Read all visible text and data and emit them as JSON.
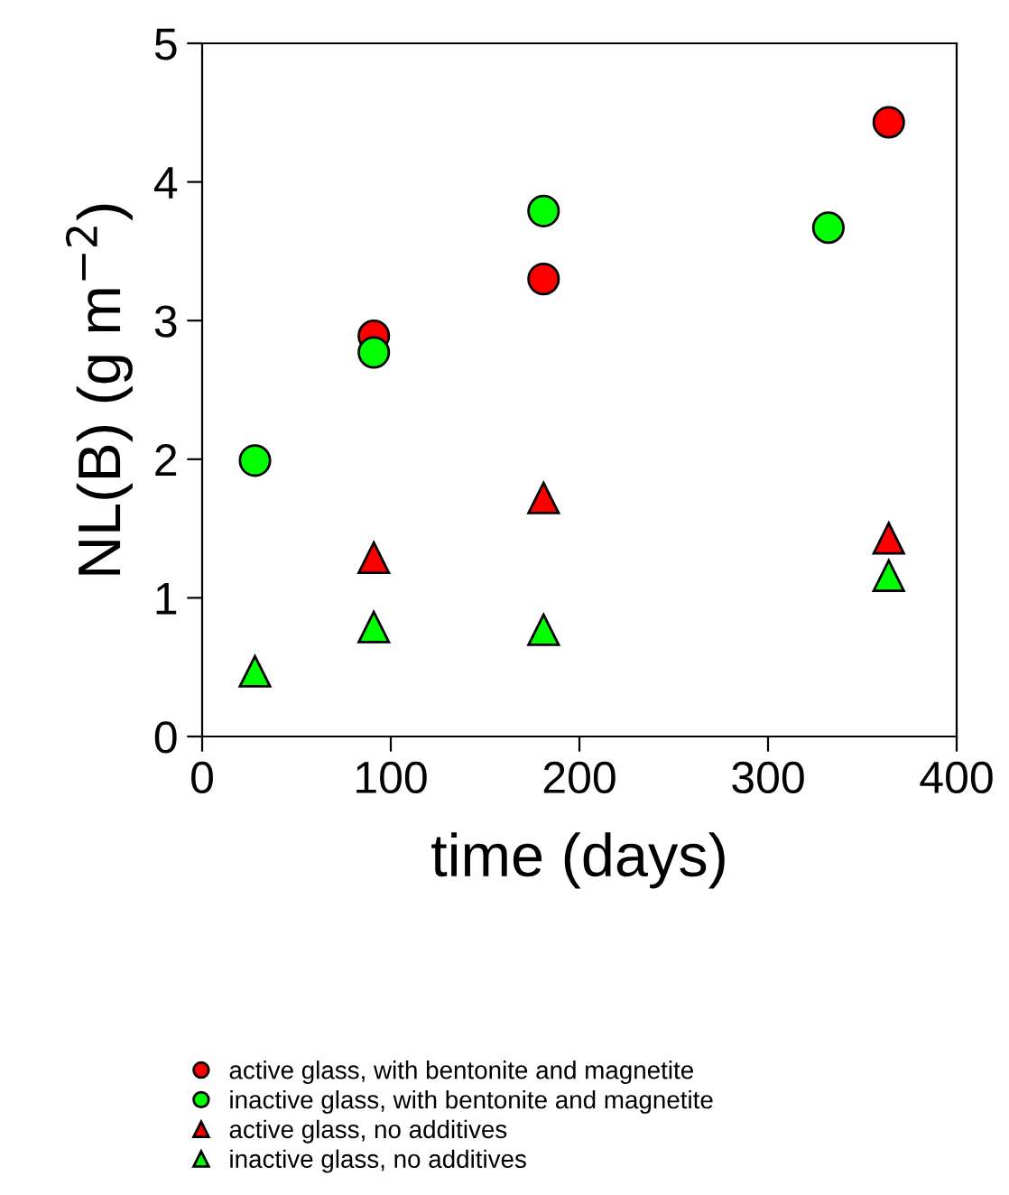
{
  "chart_data": {
    "type": "scatter",
    "xlabel": "time (days)",
    "ylabel": "NL(B) (g m$^{−2}$)",
    "xlim": [
      0,
      400
    ],
    "xticks": [
      0,
      100,
      200,
      300,
      400
    ],
    "ylim": [
      0,
      5
    ],
    "yticks": [
      0,
      1,
      2,
      3,
      4,
      5
    ],
    "grid": false,
    "legend": "bottom",
    "series": [
      {
        "name": "active glass, with bentonite and magnetite",
        "color": "#ff0000",
        "marker": "circle",
        "x": [
          91,
          181,
          364
        ],
        "values": [
          2.89,
          3.3,
          4.43
        ]
      },
      {
        "name": "inactive glass, with bentonite and magnetite",
        "color": "#00ff00",
        "marker": "circle",
        "x": [
          28,
          91,
          181,
          332
        ],
        "values": [
          1.99,
          2.77,
          3.79,
          3.67
        ]
      },
      {
        "name": "active glass, no additives",
        "color": "#ff0000",
        "marker": "triangle",
        "x": [
          91,
          181,
          364
        ],
        "values": [
          1.29,
          1.72,
          1.43
        ]
      },
      {
        "name": "inactive glass, no additives",
        "color": "#00ff00",
        "marker": "triangle",
        "x": [
          28,
          91,
          181,
          364
        ],
        "values": [
          0.47,
          0.79,
          0.77,
          1.16
        ]
      }
    ]
  }
}
